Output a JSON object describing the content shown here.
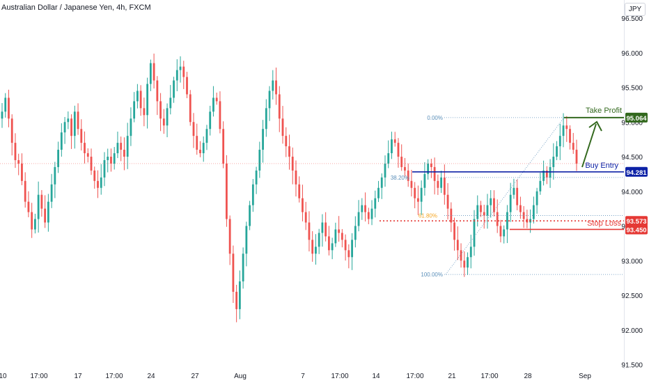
{
  "title": "Australian Dollar / Japanese Yen, 4h, FXCM",
  "currency": "JPY",
  "chart_data": {
    "type": "candlestick",
    "ylim": [
      91.5,
      96.6
    ],
    "yticks": [
      "96.500",
      "96.000",
      "95.500",
      "95.000",
      "94.500",
      "94.000",
      "93.500",
      "93.000",
      "92.500",
      "92.000",
      "91.500"
    ],
    "xticks": [
      "10",
      "17:00",
      "17",
      "17:00",
      "24",
      "27",
      "Aug",
      "7",
      "17:00",
      "14",
      "17:00",
      "21",
      "17:00",
      "28",
      "Sep"
    ],
    "colors": {
      "up": "#26a69a",
      "down": "#ef5350"
    },
    "candle_closes": [
      95.15,
      95.35,
      95.05,
      94.7,
      94.45,
      94.4,
      94.15,
      93.85,
      93.7,
      93.45,
      93.6,
      93.95,
      93.75,
      93.55,
      93.85,
      94.1,
      94.35,
      94.6,
      94.85,
      95.0,
      95.05,
      94.8,
      95.15,
      94.9,
      94.7,
      94.55,
      94.5,
      94.3,
      94.15,
      94.05,
      94.2,
      94.45,
      94.5,
      94.4,
      94.55,
      94.7,
      94.6,
      94.5,
      94.8,
      95.05,
      95.3,
      95.45,
      95.2,
      95.1,
      95.55,
      95.85,
      95.6,
      95.3,
      95.05,
      94.95,
      95.2,
      95.35,
      95.6,
      95.75,
      95.8,
      95.65,
      95.4,
      95.0,
      94.8,
      94.6,
      94.55,
      94.7,
      94.9,
      95.15,
      95.35,
      95.3,
      94.9,
      94.4,
      93.6,
      93.1,
      92.55,
      92.3,
      92.7,
      93.1,
      93.5,
      93.8,
      94.1,
      94.3,
      94.6,
      94.9,
      95.2,
      95.45,
      95.6,
      95.4,
      95.05,
      94.8,
      94.65,
      94.5,
      94.3,
      94.1,
      93.9,
      93.7,
      93.55,
      93.3,
      93.1,
      93.2,
      93.4,
      93.55,
      93.35,
      93.15,
      93.25,
      93.45,
      93.4,
      93.3,
      93.15,
      93.05,
      93.3,
      93.5,
      93.7,
      93.8,
      93.7,
      93.6,
      93.75,
      93.9,
      94.05,
      94.2,
      94.4,
      94.55,
      94.75,
      94.7,
      94.5,
      94.35,
      94.3,
      94.15,
      94.05,
      93.9,
      93.85,
      94.05,
      94.25,
      94.4,
      94.35,
      94.15,
      94.05,
      94.2,
      93.95,
      93.75,
      93.55,
      93.3,
      93.15,
      93.0,
      92.9,
      93.05,
      93.2,
      93.6,
      93.8,
      93.7,
      93.65,
      93.8,
      93.9,
      93.7,
      93.5,
      93.35,
      93.45,
      93.7,
      93.95,
      94.05,
      93.8,
      93.7,
      93.6,
      93.55,
      93.6,
      93.8,
      94.0,
      94.15,
      94.3,
      94.2,
      94.35,
      94.5,
      94.65,
      94.8,
      94.95,
      94.9,
      94.7,
      94.6,
      94.4
    ],
    "level_take_profit": 95.064,
    "level_buy_entry": 94.281,
    "level_stop_loss": 93.45,
    "level_fib_dotted": 93.573,
    "fib_level_0": 95.064,
    "fib_level_38": 94.2,
    "fib_level_61": 93.65,
    "fib_level_100": 92.8,
    "current_price": 94.4,
    "labels": {
      "take_profit": "Take Profit",
      "buy_entry": "Buy Entry",
      "stop_loss": "Stop Loss",
      "fib_0": "0.00%",
      "fib_38": "38.20%",
      "fib_61": "61.80%",
      "fib_100": "100.00%",
      "tag_tp": "95.064",
      "tag_entry": "94.281",
      "tag_stop1": "93.573",
      "tag_stop2": "93.450"
    },
    "line_colors": {
      "tp": "#33691e",
      "entry": "#0d22a6",
      "stop": "#e53935",
      "fib": "#5b8fb9"
    }
  }
}
